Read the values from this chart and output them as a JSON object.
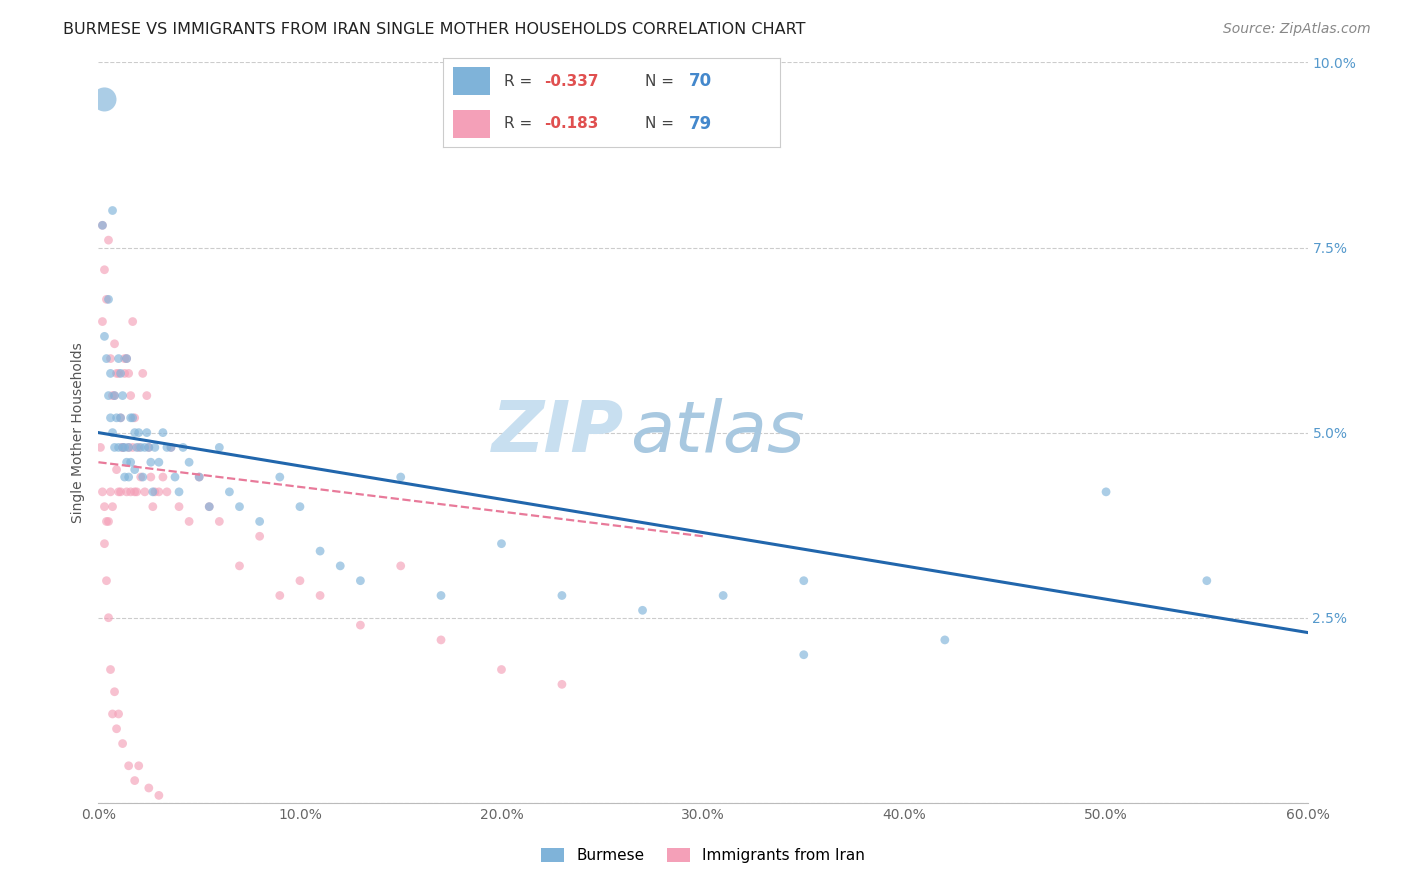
{
  "title": "BURMESE VS IMMIGRANTS FROM IRAN SINGLE MOTHER HOUSEHOLDS CORRELATION CHART",
  "source": "Source: ZipAtlas.com",
  "ylabel": "Single Mother Households",
  "xlim": [
    0.0,
    0.6
  ],
  "ylim": [
    0.0,
    0.1
  ],
  "xticks": [
    0.0,
    0.1,
    0.2,
    0.3,
    0.4,
    0.5,
    0.6
  ],
  "yticks": [
    0.0,
    0.025,
    0.05,
    0.075,
    0.1
  ],
  "xtick_labels": [
    "0.0%",
    "10.0%",
    "20.0%",
    "30.0%",
    "40.0%",
    "50.0%",
    "60.0%"
  ],
  "right_ytick_labels": [
    "",
    "2.5%",
    "5.0%",
    "7.5%",
    "10.0%"
  ],
  "blue_color": "#7fb3d9",
  "pink_color": "#f4a0b8",
  "blue_line_color": "#2166ac",
  "pink_line_color": "#e87a9a",
  "label1": "Burmese",
  "label2": "Immigrants from Iran",
  "watermark_zip": "ZIP",
  "watermark_atlas": "atlas",
  "blue_scatter_x": [
    0.002,
    0.003,
    0.004,
    0.005,
    0.005,
    0.006,
    0.006,
    0.007,
    0.008,
    0.008,
    0.009,
    0.01,
    0.01,
    0.011,
    0.011,
    0.012,
    0.012,
    0.013,
    0.013,
    0.014,
    0.014,
    0.015,
    0.015,
    0.016,
    0.016,
    0.017,
    0.018,
    0.018,
    0.019,
    0.02,
    0.021,
    0.022,
    0.023,
    0.024,
    0.025,
    0.026,
    0.027,
    0.028,
    0.03,
    0.032,
    0.034,
    0.036,
    0.038,
    0.04,
    0.042,
    0.045,
    0.05,
    0.055,
    0.06,
    0.065,
    0.07,
    0.08,
    0.09,
    0.1,
    0.11,
    0.12,
    0.13,
    0.15,
    0.17,
    0.2,
    0.23,
    0.27,
    0.31,
    0.35,
    0.42,
    0.5,
    0.55,
    0.003,
    0.007,
    0.35
  ],
  "blue_scatter_y": [
    0.078,
    0.063,
    0.06,
    0.055,
    0.068,
    0.052,
    0.058,
    0.05,
    0.048,
    0.055,
    0.052,
    0.048,
    0.06,
    0.052,
    0.058,
    0.048,
    0.055,
    0.048,
    0.044,
    0.06,
    0.046,
    0.048,
    0.044,
    0.046,
    0.052,
    0.052,
    0.05,
    0.045,
    0.048,
    0.05,
    0.048,
    0.044,
    0.048,
    0.05,
    0.048,
    0.046,
    0.042,
    0.048,
    0.046,
    0.05,
    0.048,
    0.048,
    0.044,
    0.042,
    0.048,
    0.046,
    0.044,
    0.04,
    0.048,
    0.042,
    0.04,
    0.038,
    0.044,
    0.04,
    0.034,
    0.032,
    0.03,
    0.044,
    0.028,
    0.035,
    0.028,
    0.026,
    0.028,
    0.03,
    0.022,
    0.042,
    0.03,
    0.095,
    0.08,
    0.02
  ],
  "blue_scatter_size": [
    40,
    40,
    40,
    40,
    40,
    40,
    40,
    40,
    40,
    40,
    40,
    40,
    40,
    40,
    40,
    40,
    40,
    40,
    40,
    40,
    40,
    40,
    40,
    40,
    40,
    40,
    40,
    40,
    40,
    40,
    40,
    40,
    40,
    40,
    40,
    40,
    40,
    40,
    40,
    40,
    40,
    40,
    40,
    40,
    40,
    40,
    40,
    40,
    40,
    40,
    40,
    40,
    40,
    40,
    40,
    40,
    40,
    40,
    40,
    40,
    40,
    40,
    40,
    40,
    40,
    40,
    40,
    300,
    40,
    40
  ],
  "pink_scatter_x": [
    0.001,
    0.002,
    0.002,
    0.003,
    0.003,
    0.004,
    0.004,
    0.005,
    0.005,
    0.006,
    0.006,
    0.007,
    0.007,
    0.008,
    0.008,
    0.009,
    0.009,
    0.01,
    0.01,
    0.011,
    0.011,
    0.012,
    0.012,
    0.013,
    0.013,
    0.014,
    0.014,
    0.015,
    0.015,
    0.016,
    0.016,
    0.017,
    0.017,
    0.018,
    0.018,
    0.019,
    0.02,
    0.021,
    0.022,
    0.023,
    0.024,
    0.025,
    0.026,
    0.027,
    0.028,
    0.03,
    0.032,
    0.034,
    0.036,
    0.04,
    0.045,
    0.05,
    0.055,
    0.06,
    0.07,
    0.08,
    0.09,
    0.1,
    0.11,
    0.13,
    0.15,
    0.17,
    0.2,
    0.23,
    0.002,
    0.003,
    0.004,
    0.005,
    0.006,
    0.007,
    0.008,
    0.009,
    0.01,
    0.012,
    0.015,
    0.018,
    0.02,
    0.025,
    0.03
  ],
  "pink_scatter_y": [
    0.048,
    0.042,
    0.065,
    0.04,
    0.072,
    0.038,
    0.068,
    0.038,
    0.076,
    0.042,
    0.06,
    0.04,
    0.055,
    0.055,
    0.062,
    0.045,
    0.058,
    0.058,
    0.042,
    0.042,
    0.052,
    0.048,
    0.048,
    0.06,
    0.058,
    0.06,
    0.042,
    0.048,
    0.058,
    0.042,
    0.055,
    0.048,
    0.065,
    0.052,
    0.042,
    0.042,
    0.048,
    0.044,
    0.058,
    0.042,
    0.055,
    0.048,
    0.044,
    0.04,
    0.042,
    0.042,
    0.044,
    0.042,
    0.048,
    0.04,
    0.038,
    0.044,
    0.04,
    0.038,
    0.032,
    0.036,
    0.028,
    0.03,
    0.028,
    0.024,
    0.032,
    0.022,
    0.018,
    0.016,
    0.078,
    0.035,
    0.03,
    0.025,
    0.018,
    0.012,
    0.015,
    0.01,
    0.012,
    0.008,
    0.005,
    0.003,
    0.005,
    0.002,
    0.001
  ],
  "pink_scatter_size": [
    40,
    40,
    40,
    40,
    40,
    40,
    40,
    40,
    40,
    40,
    40,
    40,
    40,
    40,
    40,
    40,
    40,
    40,
    40,
    40,
    40,
    40,
    40,
    40,
    40,
    40,
    40,
    40,
    40,
    40,
    40,
    40,
    40,
    40,
    40,
    40,
    40,
    40,
    40,
    40,
    40,
    40,
    40,
    40,
    40,
    40,
    40,
    40,
    40,
    40,
    40,
    40,
    40,
    40,
    40,
    40,
    40,
    40,
    40,
    40,
    40,
    40,
    40,
    40,
    40,
    40,
    40,
    40,
    40,
    40,
    40,
    40,
    40,
    40,
    40,
    40,
    40,
    40,
    40
  ],
  "blue_line_x": [
    0.0,
    0.6
  ],
  "blue_line_y": [
    0.05,
    0.023
  ],
  "pink_line_x": [
    0.0,
    0.3
  ],
  "pink_line_y": [
    0.046,
    0.036
  ],
  "grid_color": "#cccccc",
  "background_color": "#ffffff",
  "title_fontsize": 11.5,
  "axis_label_fontsize": 10,
  "tick_fontsize": 10,
  "source_fontsize": 10,
  "watermark_fontsize_zip": 52,
  "watermark_fontsize_atlas": 52,
  "watermark_color_zip": "#c8dff0",
  "watermark_color_atlas": "#a8c8e0",
  "right_axis_tick_color": "#5599cc",
  "legend_R_color": "#e05050",
  "legend_N_color": "#4488cc",
  "legend_text_color": "#444444"
}
